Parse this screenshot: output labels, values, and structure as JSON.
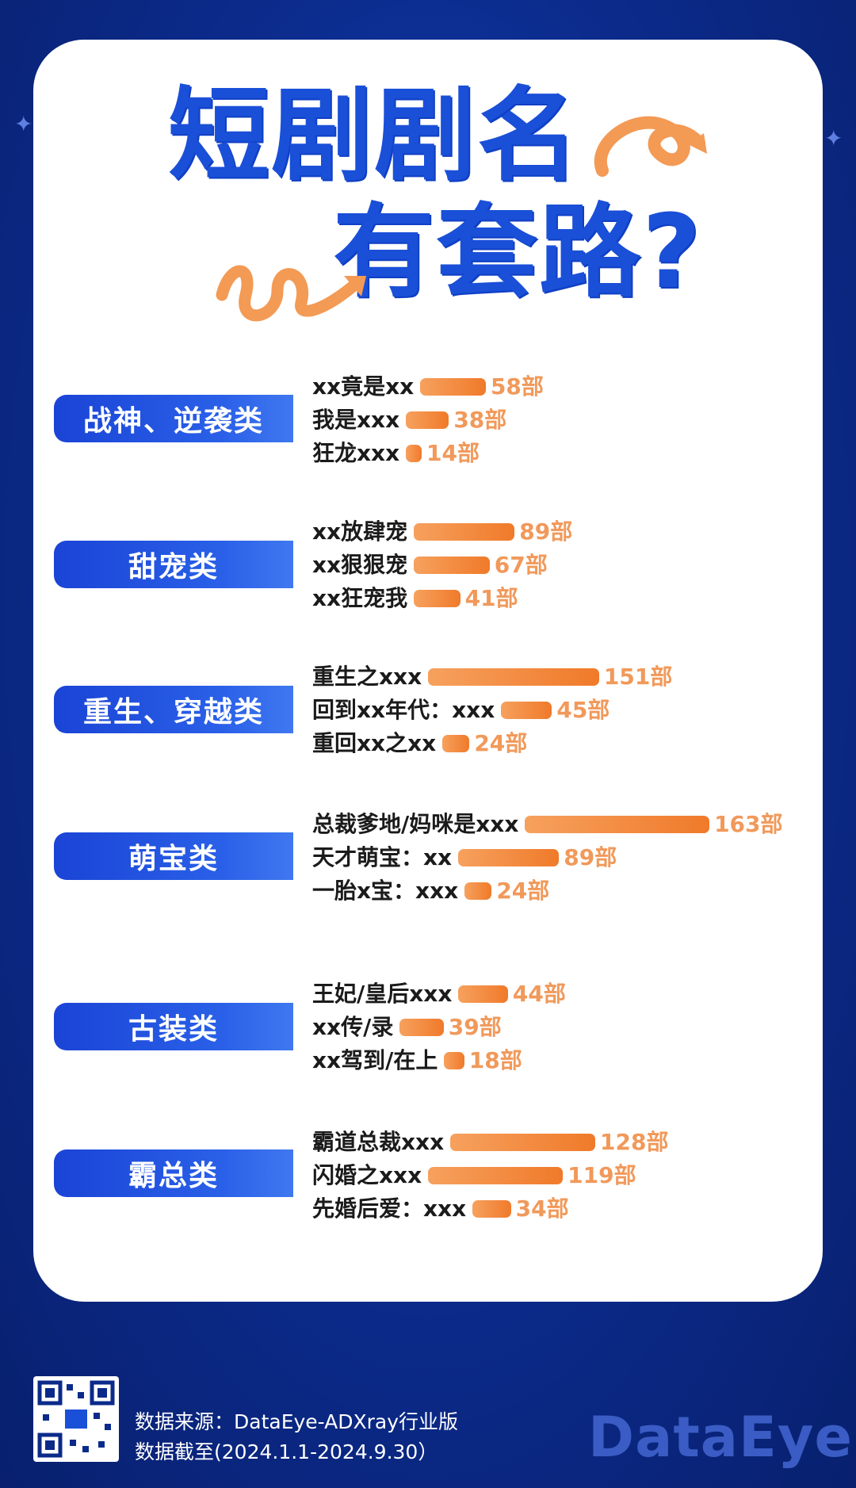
{
  "title": {
    "line1": "短剧剧名",
    "line2": "有套路?"
  },
  "chart_data": {
    "type": "bar",
    "unit": "部",
    "groups": [
      {
        "category": "战神、逆袭类",
        "items": [
          {
            "label": "xx竟是xx",
            "value": 58,
            "value_label": "58部"
          },
          {
            "label": "我是xxx",
            "value": 38,
            "value_label": "38部"
          },
          {
            "label": "狂龙xxx",
            "value": 14,
            "value_label": "14部"
          }
        ]
      },
      {
        "category": "甜宠类",
        "items": [
          {
            "label": "xx放肆宠",
            "value": 89,
            "value_label": "89部"
          },
          {
            "label": "xx狠狠宠",
            "value": 67,
            "value_label": "67部"
          },
          {
            "label": "xx狂宠我",
            "value": 41,
            "value_label": "41部"
          }
        ]
      },
      {
        "category": "重生、穿越类",
        "items": [
          {
            "label": "重生之xxx",
            "value": 151,
            "value_label": "151部"
          },
          {
            "label": "回到xx年代：xxx",
            "value": 45,
            "value_label": "45部"
          },
          {
            "label": "重回xx之xx",
            "value": 24,
            "value_label": "24部"
          }
        ]
      },
      {
        "category": "萌宝类",
        "items": [
          {
            "label": "总裁爹地/妈咪是xxx",
            "value": 163,
            "value_label": "163部"
          },
          {
            "label": "天才萌宝：xx",
            "value": 89,
            "value_label": "89部"
          },
          {
            "label": "一胎x宝：xxx",
            "value": 24,
            "value_label": "24部"
          }
        ]
      },
      {
        "category": "古装类",
        "items": [
          {
            "label": "王妃/皇后xxx",
            "value": 44,
            "value_label": "44部"
          },
          {
            "label": "xx传/录",
            "value": 39,
            "value_label": "39部"
          },
          {
            "label": "xx驾到/在上",
            "value": 18,
            "value_label": "18部"
          }
        ]
      },
      {
        "category": "霸总类",
        "items": [
          {
            "label": "霸道总裁xxx",
            "value": 128,
            "value_label": "128部"
          },
          {
            "label": "闪婚之xxx",
            "value": 119,
            "value_label": "119部"
          },
          {
            "label": "先婚后爱：xxx",
            "value": 34,
            "value_label": "34部"
          }
        ]
      }
    ]
  },
  "footer": {
    "source": "数据来源：DataEye-ADXray行业版",
    "period": "数据截至(2024.1.1-2024.9.30）",
    "qr_icon": "qr-code-icon",
    "watermark": "DataEye"
  },
  "colors": {
    "background": "#0b2a8a",
    "title": "#1a4fd8",
    "bar": "#f07a2a",
    "value": "#f1995a",
    "category": "#1a44d6"
  }
}
